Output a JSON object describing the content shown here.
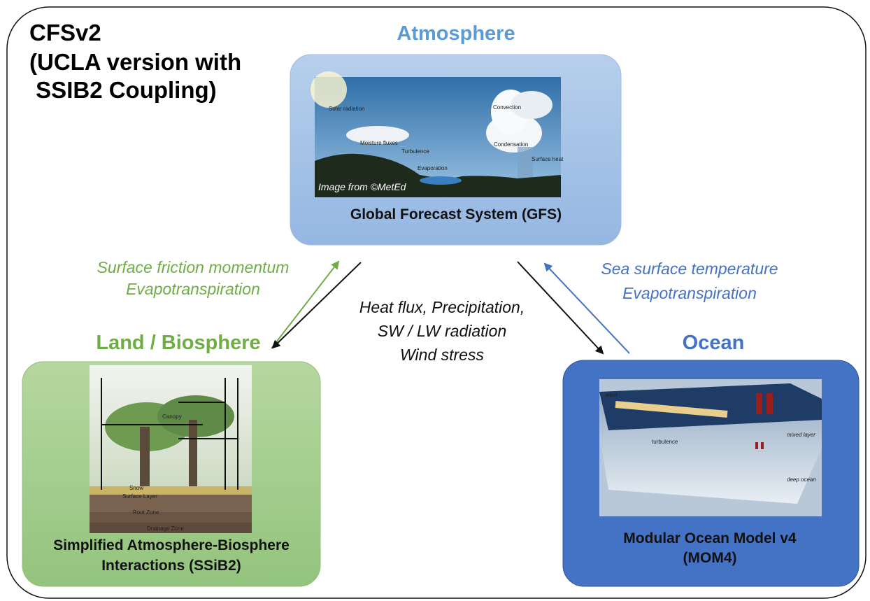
{
  "title": {
    "lines": [
      "CFSv2",
      "(UCLA version with",
      " SSIB2 Coupling)"
    ]
  },
  "nodes": {
    "atmosphere": {
      "heading": "Atmosphere",
      "label": "Global Forecast System (GFS)",
      "image_labels": [
        "Solar radiation",
        "Moisture fluxes",
        "Turbulence",
        "Evaporation",
        "Convection",
        "Condensation",
        "Surface heat"
      ],
      "image_credit": "Image from ©MetEd"
    },
    "land": {
      "heading": "Land / Biosphere",
      "label_lines": [
        "Simplified Atmosphere-Biosphere",
        "Interactions (SSiB2)"
      ],
      "image_labels": [
        "Canopy",
        "Snow",
        "Surface Layer",
        "Root Zone",
        "Drainage Zone"
      ]
    },
    "ocean": {
      "heading": "Ocean",
      "label_lines": [
        "Modular Ocean Model v4",
        "(MOM4)"
      ],
      "image_labels": [
        "wind",
        "turbulence",
        "mixed layer",
        "deep ocean"
      ]
    }
  },
  "edges": {
    "land_to_atmosphere": [
      "Surface friction momentum",
      "Evapotranspiration"
    ],
    "atmosphere_to_surface": [
      "Heat flux, Precipitation,",
      "SW / LW radiation",
      "Wind stress"
    ],
    "ocean_to_atmosphere": [
      "Sea surface temperature",
      "Evapotranspiration"
    ]
  }
}
